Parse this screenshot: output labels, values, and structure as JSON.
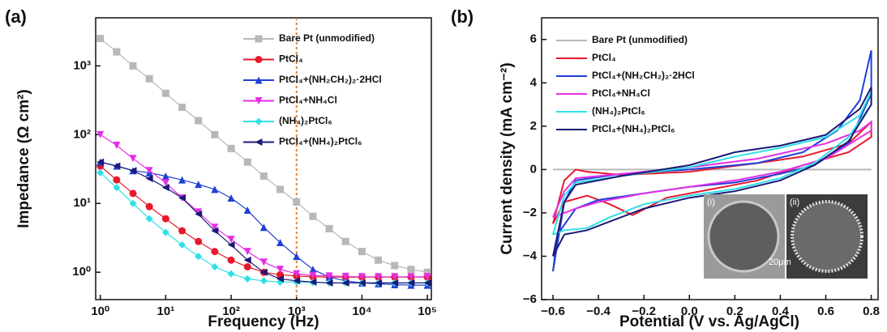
{
  "chart_data": [
    {
      "type": "line",
      "panel_label": "(a)",
      "xscale": "log",
      "yscale": "log",
      "x_label": "Frequency (Hz)",
      "y_label": "Impedance (Ω cm²)",
      "xlim": [
        0.85,
        115000
      ],
      "ylim": [
        0.4,
        5000
      ],
      "xticks": [
        {
          "value": 1,
          "label": "10⁰"
        },
        {
          "value": 10,
          "label": "10¹"
        },
        {
          "value": 100,
          "label": "10²"
        },
        {
          "value": 1000,
          "label": "10³"
        },
        {
          "value": 10000,
          "label": "10⁴"
        },
        {
          "value": 100000,
          "label": "10⁵"
        }
      ],
      "yticks": [
        {
          "value": 1,
          "label": "10⁰"
        },
        {
          "value": 10,
          "label": "10¹"
        },
        {
          "value": 100,
          "label": "10²"
        },
        {
          "value": 1000,
          "label": "10³"
        }
      ],
      "legend": "upper right",
      "vline": {
        "x": 1000,
        "color": "#e8822a"
      },
      "x": [
        1,
        1.78,
        3.16,
        5.62,
        10,
        17.8,
        31.6,
        56.2,
        100,
        178,
        316,
        562,
        1000,
        1780,
        3160,
        5620,
        10000,
        17800,
        31600,
        56200,
        100000
      ],
      "series": [
        {
          "name": "Bare Pt (unmodified)",
          "color": "#b8b8b8",
          "marker": "square",
          "values": [
            2500,
            1600,
            1000,
            650,
            400,
            250,
            160,
            100,
            63,
            40,
            25,
            16,
            10.5,
            6.5,
            4.3,
            2.8,
            2.0,
            1.5,
            1.25,
            1.1,
            1.0
          ]
        },
        {
          "name": "PtCl₄",
          "color": "#e8192c",
          "marker": "circle",
          "values": [
            35,
            22,
            14,
            9,
            6,
            4,
            2.8,
            2,
            1.5,
            1.2,
            1.0,
            0.92,
            0.88,
            0.86,
            0.85,
            0.85,
            0.85,
            0.85,
            0.85,
            0.85,
            0.85
          ]
        },
        {
          "name": "PtCl₄+(NH₂CH₂)₂·2HCl",
          "color": "#1f3fd6",
          "marker": "triangle-up",
          "values": [
            40,
            35,
            30,
            28,
            25,
            22,
            19,
            16,
            12,
            8,
            4.5,
            2.7,
            1.7,
            1.1,
            0.85,
            0.75,
            0.7,
            0.68,
            0.66,
            0.65,
            0.65
          ]
        },
        {
          "name": "PtCl₄+NH₄Cl",
          "color": "#e62ee6",
          "marker": "triangle-down",
          "values": [
            100,
            70,
            45,
            30,
            20,
            12,
            7.5,
            4.5,
            3,
            2,
            1.4,
            1.1,
            0.95,
            0.9,
            0.88,
            0.87,
            0.86,
            0.86,
            0.86,
            0.86,
            0.86
          ]
        },
        {
          "name": "(NH₄)₂PtCl₆",
          "color": "#2ee0e6",
          "marker": "diamond",
          "values": [
            28,
            17,
            10,
            6,
            3.8,
            2.5,
            1.7,
            1.2,
            0.95,
            0.8,
            0.75,
            0.72,
            0.72,
            0.71,
            0.7,
            0.7,
            0.7,
            0.7,
            0.7,
            0.7,
            0.7
          ]
        },
        {
          "name": "PtCl₄+(NH₄)₂PtCl₆",
          "color": "#1a1a78",
          "marker": "triangle-left",
          "values": [
            40,
            35,
            30,
            23,
            17,
            12,
            7,
            4,
            2.5,
            1.5,
            1.0,
            0.8,
            0.75,
            0.72,
            0.7,
            0.7,
            0.7,
            0.7,
            0.7,
            0.7,
            0.7
          ]
        }
      ]
    },
    {
      "type": "line",
      "panel_label": "(b)",
      "x_label": "Potential (V vs. Ag/AgCl)",
      "y_label": "Current density (mA cm⁻²)",
      "xlim": [
        -0.65,
        0.83
      ],
      "ylim": [
        -6,
        7
      ],
      "xticks": [
        {
          "value": -0.6,
          "label": "−0.6"
        },
        {
          "value": -0.4,
          "label": "−0.4"
        },
        {
          "value": -0.2,
          "label": "−0.2"
        },
        {
          "value": 0,
          "label": "0.0"
        },
        0.2,
        0.4,
        0.6,
        0.8
      ],
      "yticks": [
        {
          "value": -6,
          "label": "−6"
        },
        {
          "value": -4,
          "label": "−4"
        },
        {
          "value": -2,
          "label": "−2"
        },
        0,
        2,
        4,
        6
      ],
      "legend": "upper left",
      "inset_labels": [
        "(i)",
        "(ii)",
        "20μm"
      ],
      "series": [
        {
          "name": "Bare Pt (unmodified)",
          "color": "#b8b8b8",
          "x": [
            -0.6,
            0.8
          ],
          "values": [
            0,
            0
          ]
        },
        {
          "name": "PtCl₄",
          "color": "#e8192c",
          "x": [
            -0.6,
            -0.55,
            -0.5,
            -0.45,
            -0.3,
            0,
            0.3,
            0.5,
            0.7,
            0.8,
            0.8,
            0.7,
            0.5,
            0.3,
            0.1,
            -0.1,
            -0.25,
            -0.35,
            -0.45,
            -0.55,
            -0.6
          ],
          "values": [
            -2.5,
            -0.5,
            0,
            -0.1,
            -0.25,
            -0.1,
            0.3,
            0.6,
            1.2,
            2.2,
            1.5,
            0.8,
            0.2,
            -0.5,
            -0.9,
            -1.3,
            -2.1,
            -1.6,
            -1.2,
            -1.5,
            -2.5
          ]
        },
        {
          "name": "PtCl₄+(NH₂CH₂)₂·2HCl",
          "color": "#1f3fd6",
          "x": [
            -0.6,
            -0.55,
            -0.5,
            -0.3,
            0,
            0.3,
            0.5,
            0.65,
            0.75,
            0.8,
            0.8,
            0.7,
            0.55,
            0.4,
            0.2,
            0,
            -0.2,
            -0.4,
            -0.5,
            -0.58,
            -0.6
          ],
          "values": [
            -4.7,
            -1.5,
            -0.5,
            -0.2,
            0,
            0.3,
            0.8,
            1.8,
            3.2,
            5.5,
            3.5,
            1.2,
            0.2,
            -0.2,
            -0.6,
            -0.8,
            -1.1,
            -1.4,
            -1.8,
            -3,
            -4.7
          ]
        },
        {
          "name": "PtCl₄+NH₄Cl",
          "color": "#e62ee6",
          "x": [
            -0.6,
            -0.55,
            -0.5,
            -0.3,
            0,
            0.3,
            0.6,
            0.75,
            0.8,
            0.8,
            0.6,
            0.4,
            0.2,
            0,
            -0.2,
            -0.4,
            -0.5,
            -0.6
          ],
          "values": [
            -2.2,
            -1.0,
            -0.4,
            -0.2,
            0.1,
            0.5,
            1.2,
            1.8,
            2.2,
            1.8,
            0.5,
            -0.1,
            -0.5,
            -0.8,
            -1.1,
            -1.5,
            -1.8,
            -2.2
          ]
        },
        {
          "name": "(NH₄)₂PtCl₆",
          "color": "#2ee0e6",
          "x": [
            -0.6,
            -0.55,
            -0.5,
            -0.3,
            0,
            0.2,
            0.4,
            0.6,
            0.75,
            0.8,
            0.8,
            0.7,
            0.55,
            0.4,
            0.2,
            0,
            -0.2,
            -0.35,
            -0.45,
            -0.55,
            -0.6
          ],
          "values": [
            -3.0,
            -1.2,
            -0.6,
            -0.3,
            0.1,
            0.6,
            1.0,
            1.5,
            2.5,
            3.6,
            3.0,
            1.5,
            0.3,
            -0.4,
            -0.9,
            -1.2,
            -1.6,
            -2.2,
            -2.7,
            -2.8,
            -3.0
          ]
        },
        {
          "name": "PtCl₄+(NH₄)₂PtCl₆",
          "color": "#1a1a78",
          "x": [
            -0.6,
            -0.55,
            -0.5,
            -0.3,
            0,
            0.2,
            0.4,
            0.6,
            0.75,
            0.8,
            0.8,
            0.7,
            0.55,
            0.4,
            0.2,
            0,
            -0.2,
            -0.35,
            -0.45,
            -0.55,
            -0.6
          ],
          "values": [
            -4.0,
            -1.5,
            -0.7,
            -0.3,
            0.2,
            0.8,
            1.1,
            1.6,
            2.8,
            3.8,
            3.0,
            1.3,
            0.2,
            -0.5,
            -1.0,
            -1.3,
            -1.8,
            -2.4,
            -2.8,
            -3.0,
            -4.0
          ]
        }
      ]
    }
  ]
}
